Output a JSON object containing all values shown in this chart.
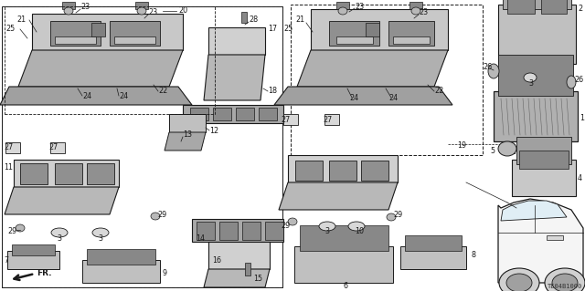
{
  "fig_width": 6.4,
  "fig_height": 3.19,
  "dpi": 100,
  "bg": "#ffffff",
  "diagram_code": "TE04B1000",
  "gray_light": "#d8d8d8",
  "gray_mid": "#b8b8b8",
  "gray_dark": "#888888",
  "line_color": "#1a1a1a",
  "label_fs": 5.8
}
